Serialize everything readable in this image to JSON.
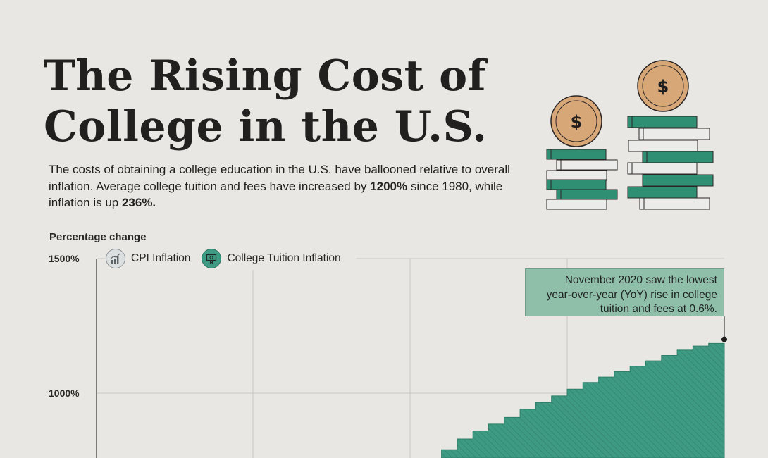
{
  "title_line1": "The Rising Cost of",
  "title_line2": "College in the U.S.",
  "subtitle": {
    "part1": "The costs of obtaining a college education in the U.S. have ballooned relative to overall inflation. Average college tuition and fees have increased by ",
    "bold1": "1200%",
    "part2": " since 1980, while inflation is up ",
    "bold2": "236%."
  },
  "decoration": {
    "coin_symbol": "$",
    "coin_color": "#d8a777",
    "book_green": "#2f8f73",
    "book_white": "#ebebea"
  },
  "chart_data": {
    "type": "area",
    "ylabel": "Percentage change",
    "y_ticks": [
      {
        "value": 1500,
        "label": "1500%"
      },
      {
        "value": 1000,
        "label": "1000%"
      }
    ],
    "grid": true,
    "legend": {
      "placement": "top-left",
      "entries": [
        {
          "name": "CPI Inflation",
          "icon": "chart-icon"
        },
        {
          "name": "College Tuition Inflation",
          "icon": "diploma-icon"
        }
      ]
    },
    "series": [
      {
        "name": "College Tuition Inflation",
        "color": "#3e9a82",
        "step": true,
        "values": [
          790,
          830,
          860,
          885,
          910,
          940,
          965,
          990,
          1015,
          1040,
          1060,
          1080,
          1100,
          1120,
          1140,
          1160,
          1175,
          1185
        ]
      }
    ],
    "annotation": {
      "text_line1": "November 2020 saw the lowest",
      "text_line2": "year-over-year (YoY) rise in college",
      "text_line3": "tuition and fees at 0.6%.",
      "value": 1200
    }
  }
}
